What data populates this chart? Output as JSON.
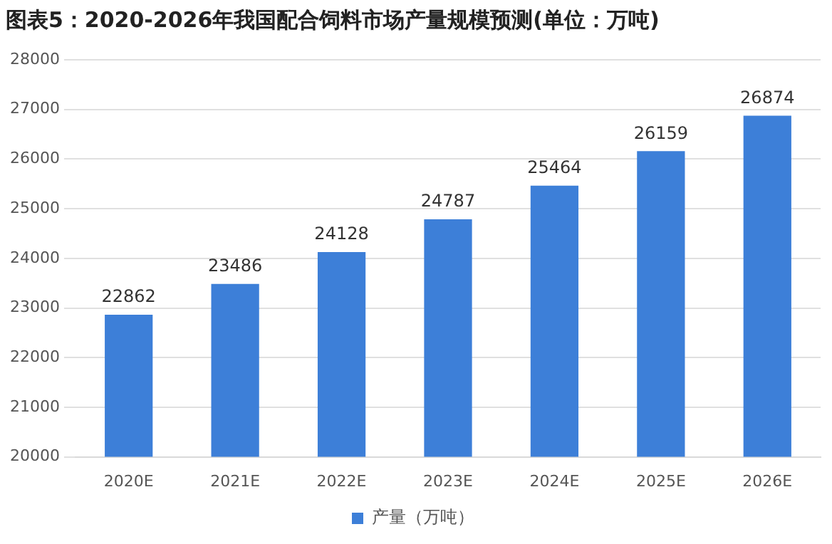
{
  "chart_data": {
    "type": "bar",
    "title": "图表5：2020-2026年我国配合饲料市场产量规模预测(单位：万吨)",
    "categories": [
      "2020E",
      "2021E",
      "2022E",
      "2023E",
      "2024E",
      "2025E",
      "2026E"
    ],
    "series": [
      {
        "name": "产量（万吨）",
        "color": "#3d7fd8",
        "values": [
          22862,
          23486,
          24128,
          24787,
          25464,
          26159,
          26874
        ]
      }
    ],
    "ylim": [
      20000,
      28000
    ],
    "yticks": [
      20000,
      21000,
      22000,
      23000,
      24000,
      25000,
      26000,
      27000,
      28000
    ],
    "grid": "y",
    "legend": "bottom",
    "data_labels": true
  }
}
